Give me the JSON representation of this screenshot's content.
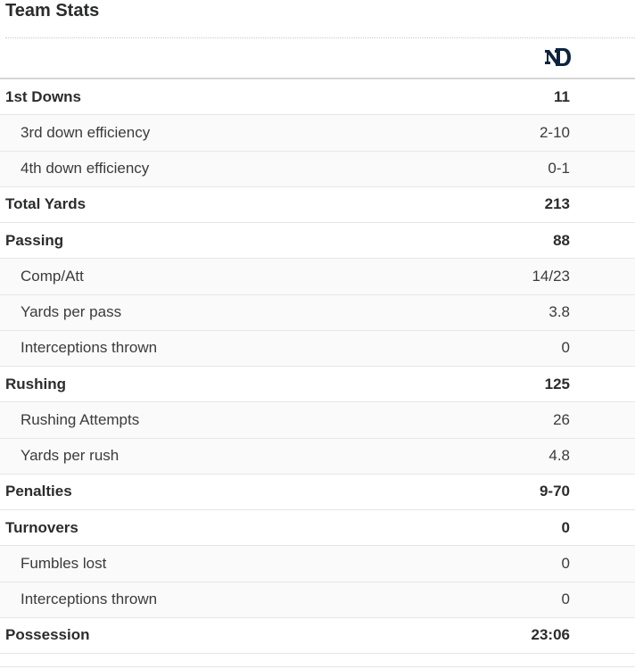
{
  "section": {
    "title": "Team Stats"
  },
  "team": {
    "logo_icon": "notre-dame-nd-logo",
    "logo_color": "#0c2340"
  },
  "rows": [
    {
      "label": "1st Downs",
      "value": "11",
      "kind": "main"
    },
    {
      "label": "3rd down efficiency",
      "value": "2-10",
      "kind": "sub"
    },
    {
      "label": "4th down efficiency",
      "value": "0-1",
      "kind": "sub"
    },
    {
      "label": "Total Yards",
      "value": "213",
      "kind": "main"
    },
    {
      "label": "Passing",
      "value": "88",
      "kind": "main"
    },
    {
      "label": "Comp/Att",
      "value": "14/23",
      "kind": "sub"
    },
    {
      "label": "Yards per pass",
      "value": "3.8",
      "kind": "sub"
    },
    {
      "label": "Interceptions thrown",
      "value": "0",
      "kind": "sub"
    },
    {
      "label": "Rushing",
      "value": "125",
      "kind": "main"
    },
    {
      "label": "Rushing Attempts",
      "value": "26",
      "kind": "sub"
    },
    {
      "label": "Yards per rush",
      "value": "4.8",
      "kind": "sub"
    },
    {
      "label": "Penalties",
      "value": "9-70",
      "kind": "main"
    },
    {
      "label": "Turnovers",
      "value": "0",
      "kind": "main"
    },
    {
      "label": "Fumbles lost",
      "value": "0",
      "kind": "sub"
    },
    {
      "label": "Interceptions thrown",
      "value": "0",
      "kind": "sub"
    },
    {
      "label": "Possession",
      "value": "23:06",
      "kind": "main"
    }
  ]
}
